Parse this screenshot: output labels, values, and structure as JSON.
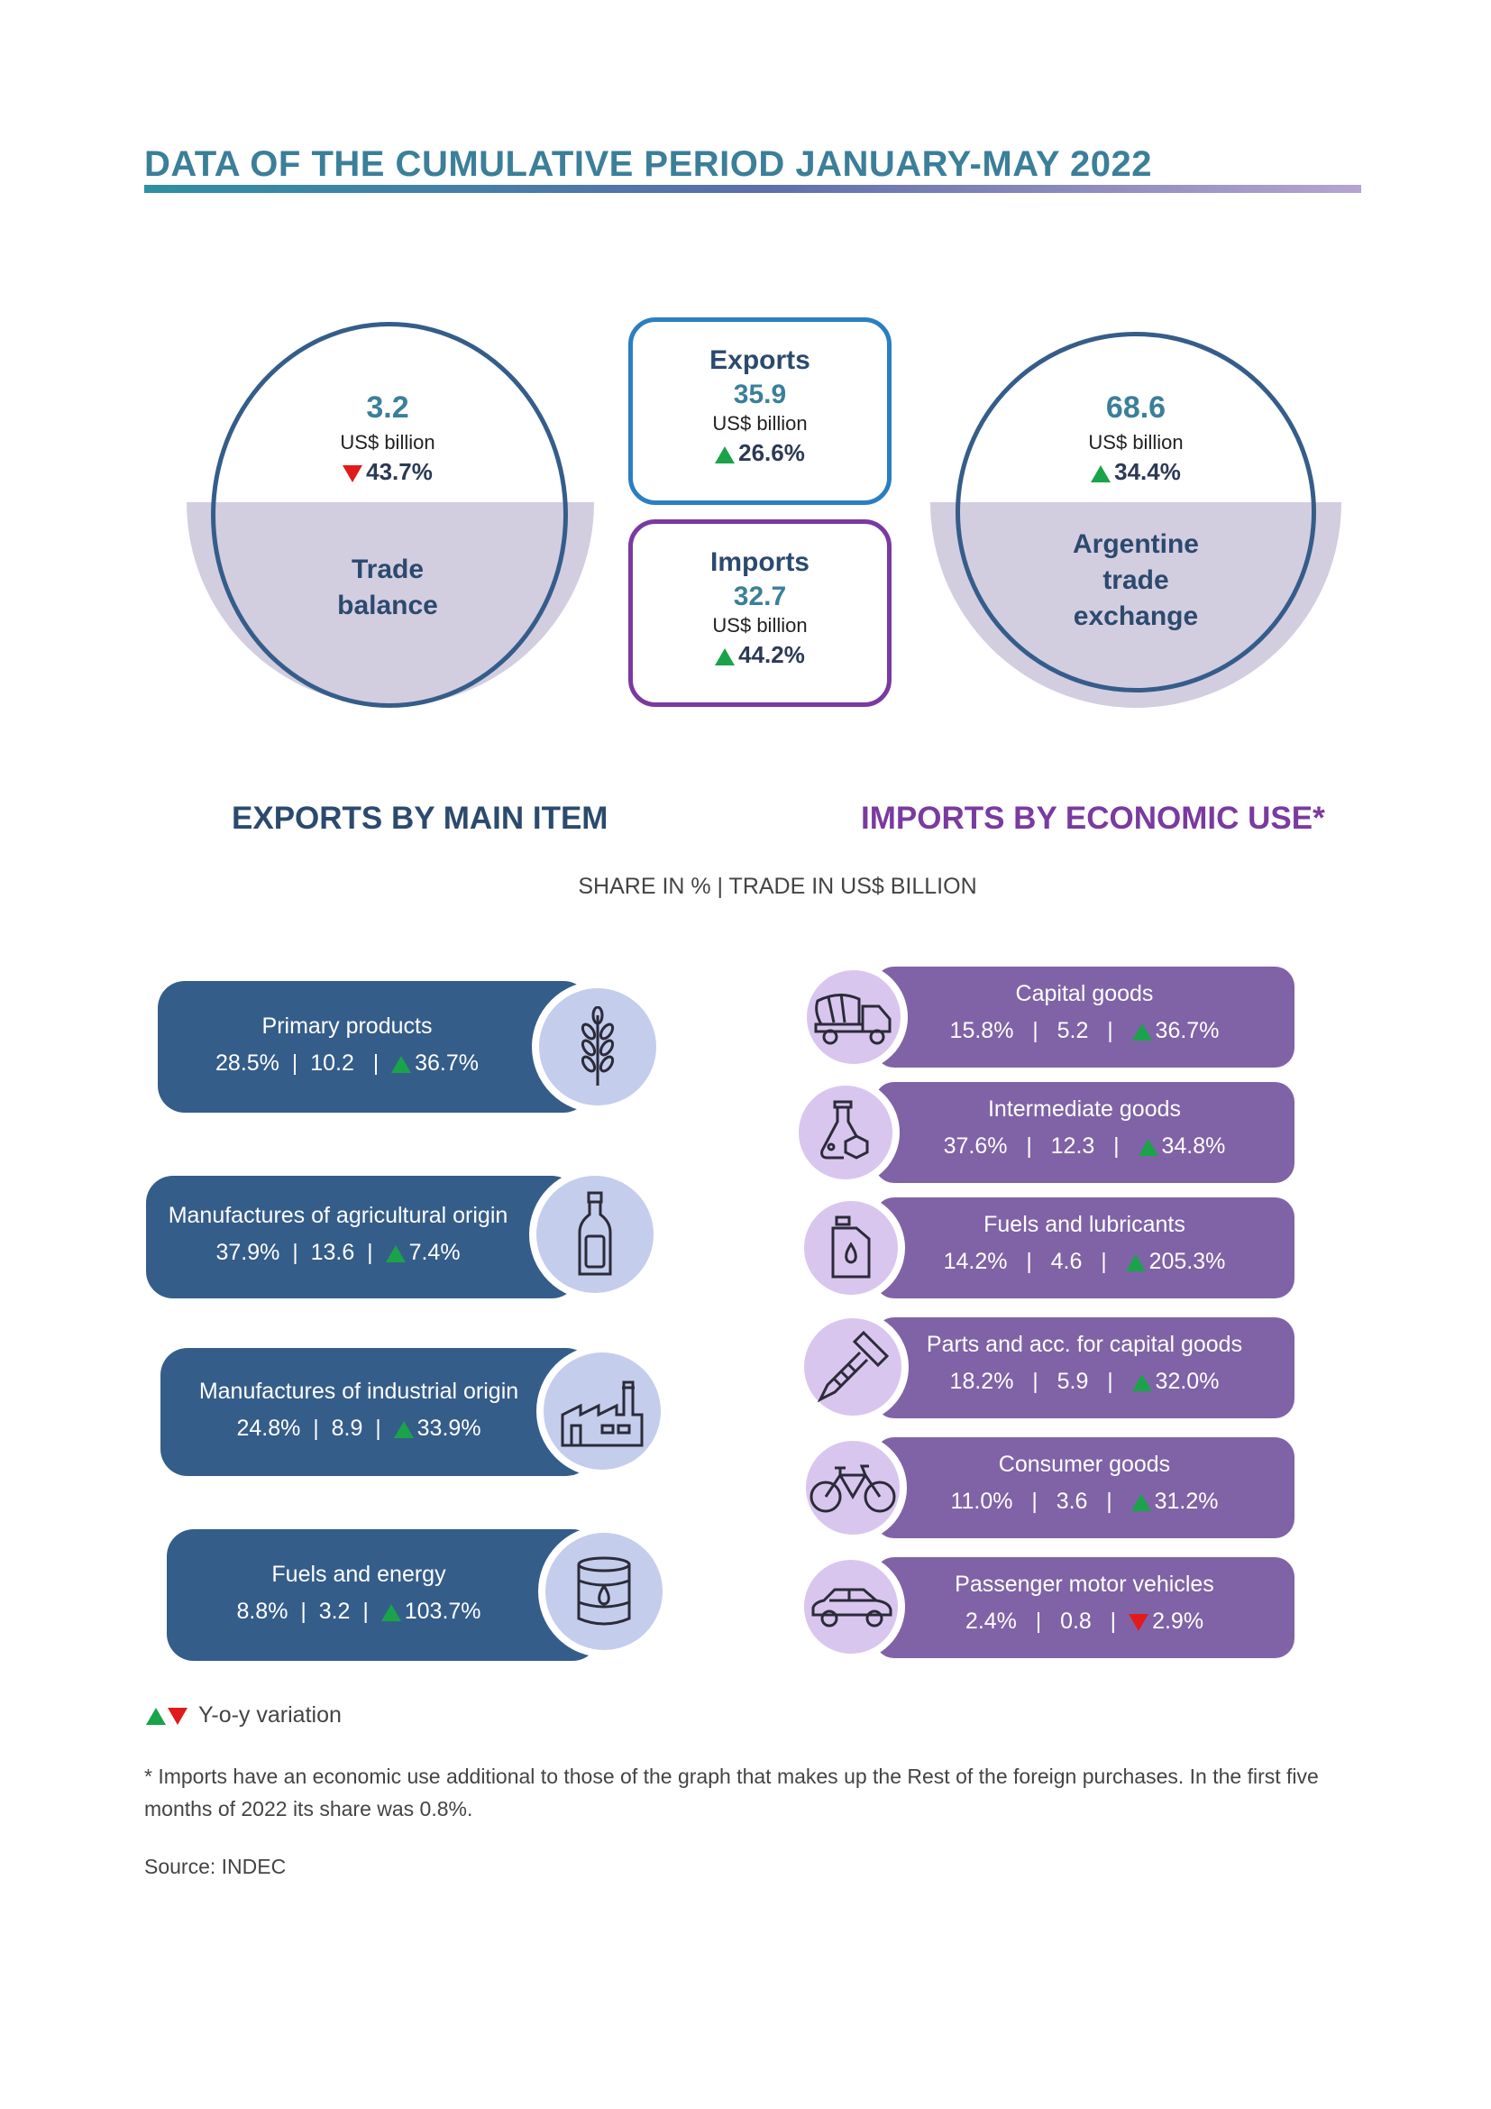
{
  "title": "DATA OF THE CUMULATIVE PERIOD JANUARY-MAY 2022",
  "trade_balance": {
    "value": "3.2",
    "unit": "US$ billion",
    "change": "43.7%",
    "label_line1": "Trade",
    "label_line2": "balance"
  },
  "exports": {
    "heading": "Exports",
    "value": "35.9",
    "unit": "US$ billion",
    "change": "26.6%"
  },
  "imports": {
    "heading": "Imports",
    "value": "32.7",
    "unit": "US$ billion",
    "change": "44.2%"
  },
  "trade_exchange": {
    "value": "68.6",
    "unit": "US$ billion",
    "change": "34.4%",
    "label_line1": "Argentine",
    "label_line2": "trade",
    "label_line3": "exchange"
  },
  "section_exports": "EXPORTS BY MAIN ITEM",
  "section_imports": "IMPORTS BY ECONOMIC USE*",
  "subheading": "SHARE IN % | TRADE IN US$ BILLION",
  "export_items": [
    {
      "name": "Primary products",
      "share": "28.5%",
      "value": "10.2",
      "change": "36.7%",
      "icon": "wheat-icon"
    },
    {
      "name": "Manufactures of agricultural origin",
      "share": "37.9%",
      "value": "13.6",
      "change": "7.4%",
      "icon": "bottle-icon"
    },
    {
      "name": "Manufactures of industrial origin",
      "share": "24.8%",
      "value": "8.9",
      "change": "33.9%",
      "icon": "factory-icon"
    },
    {
      "name": "Fuels and energy",
      "share": "8.8%",
      "value": "3.2",
      "change": "103.7%",
      "icon": "oil-barrel-icon"
    }
  ],
  "import_items": [
    {
      "name": "Capital goods",
      "share": "15.8%",
      "value": "5.2",
      "change": "36.7%",
      "icon": "concrete-mixer-truck-icon"
    },
    {
      "name": "Intermediate goods",
      "share": "37.6%",
      "value": "12.3",
      "change": "34.8%",
      "icon": "chemistry-flask-icon"
    },
    {
      "name": "Fuels and lubricants",
      "share": "14.2%",
      "value": "4.6",
      "change": "205.3%",
      "icon": "jerrycan-icon"
    },
    {
      "name": "Parts and acc. for capital goods",
      "share": "18.2%",
      "value": "5.9",
      "change": "32.0%",
      "icon": "screw-icon"
    },
    {
      "name": "Consumer goods",
      "share": "11.0%",
      "value": "3.6",
      "change": "31.2%",
      "icon": "bicycle-icon"
    },
    {
      "name": "Passenger motor vehicles",
      "share": "2.4%",
      "value": "0.8",
      "change": "2.9%",
      "icon": "car-icon"
    }
  ],
  "legend": "Y-o-y variation",
  "footnote": "* Imports have an economic use additional to those of the graph that makes up the Rest of the foreign purchases. In the first five months of 2022 its share was 0.8%.",
  "source": "Source: INDEC",
  "colors": {
    "export_pill": "#355d8a",
    "import_pill": "#8063a6",
    "up": "#1aa34a",
    "down": "#e11b1b"
  }
}
